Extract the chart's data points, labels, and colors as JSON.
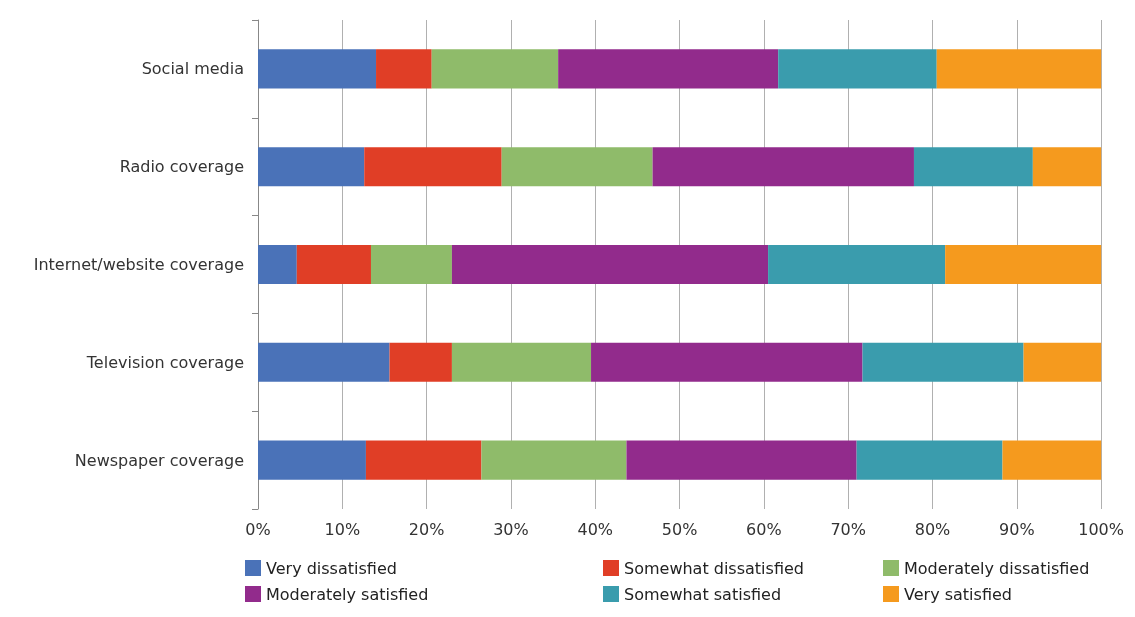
{
  "chart_data": {
    "type": "bar",
    "orientation": "horizontal",
    "stacked": true,
    "categories": [
      "Social media",
      "Radio coverage",
      "Internet/website coverage",
      "Television coverage",
      "Newspaper coverage"
    ],
    "series": [
      {
        "name": "Very dissatisfied",
        "color": "#4a72b8",
        "values": [
          14.0,
          12.6,
          4.6,
          15.6,
          12.8
        ]
      },
      {
        "name": "Somewhat dissatisfied",
        "color": "#e03e26",
        "values": [
          6.6,
          16.3,
          8.8,
          7.4,
          13.7
        ]
      },
      {
        "name": "Moderately dissatisfied",
        "color": "#8fbb6a",
        "values": [
          15.0,
          17.9,
          9.6,
          16.5,
          17.2
        ]
      },
      {
        "name": "Moderately satisfied",
        "color": "#922b8c",
        "values": [
          26.1,
          31.0,
          37.5,
          32.2,
          27.3
        ]
      },
      {
        "name": "Somewhat satisfied",
        "color": "#3a9cad",
        "values": [
          18.8,
          14.1,
          21.0,
          19.1,
          17.3
        ]
      },
      {
        "name": "Very satisfied",
        "color": "#f59a1e",
        "values": [
          19.5,
          8.1,
          18.5,
          9.2,
          11.7
        ]
      }
    ],
    "xlim": [
      0,
      100
    ],
    "xticks": [
      {
        "value": 0,
        "label": "0%"
      },
      {
        "value": 10,
        "label": "10%"
      },
      {
        "value": 20,
        "label": "20%"
      },
      {
        "value": 30,
        "label": "30%"
      },
      {
        "value": 40,
        "label": "40%"
      },
      {
        "value": 50,
        "label": "50%"
      },
      {
        "value": 60,
        "label": "60%"
      },
      {
        "value": 70,
        "label": "70%"
      },
      {
        "value": 80,
        "label": "80%"
      },
      {
        "value": 90,
        "label": "90%"
      },
      {
        "value": 100,
        "label": "100%"
      }
    ],
    "grid": "x",
    "legend": "bottom"
  }
}
